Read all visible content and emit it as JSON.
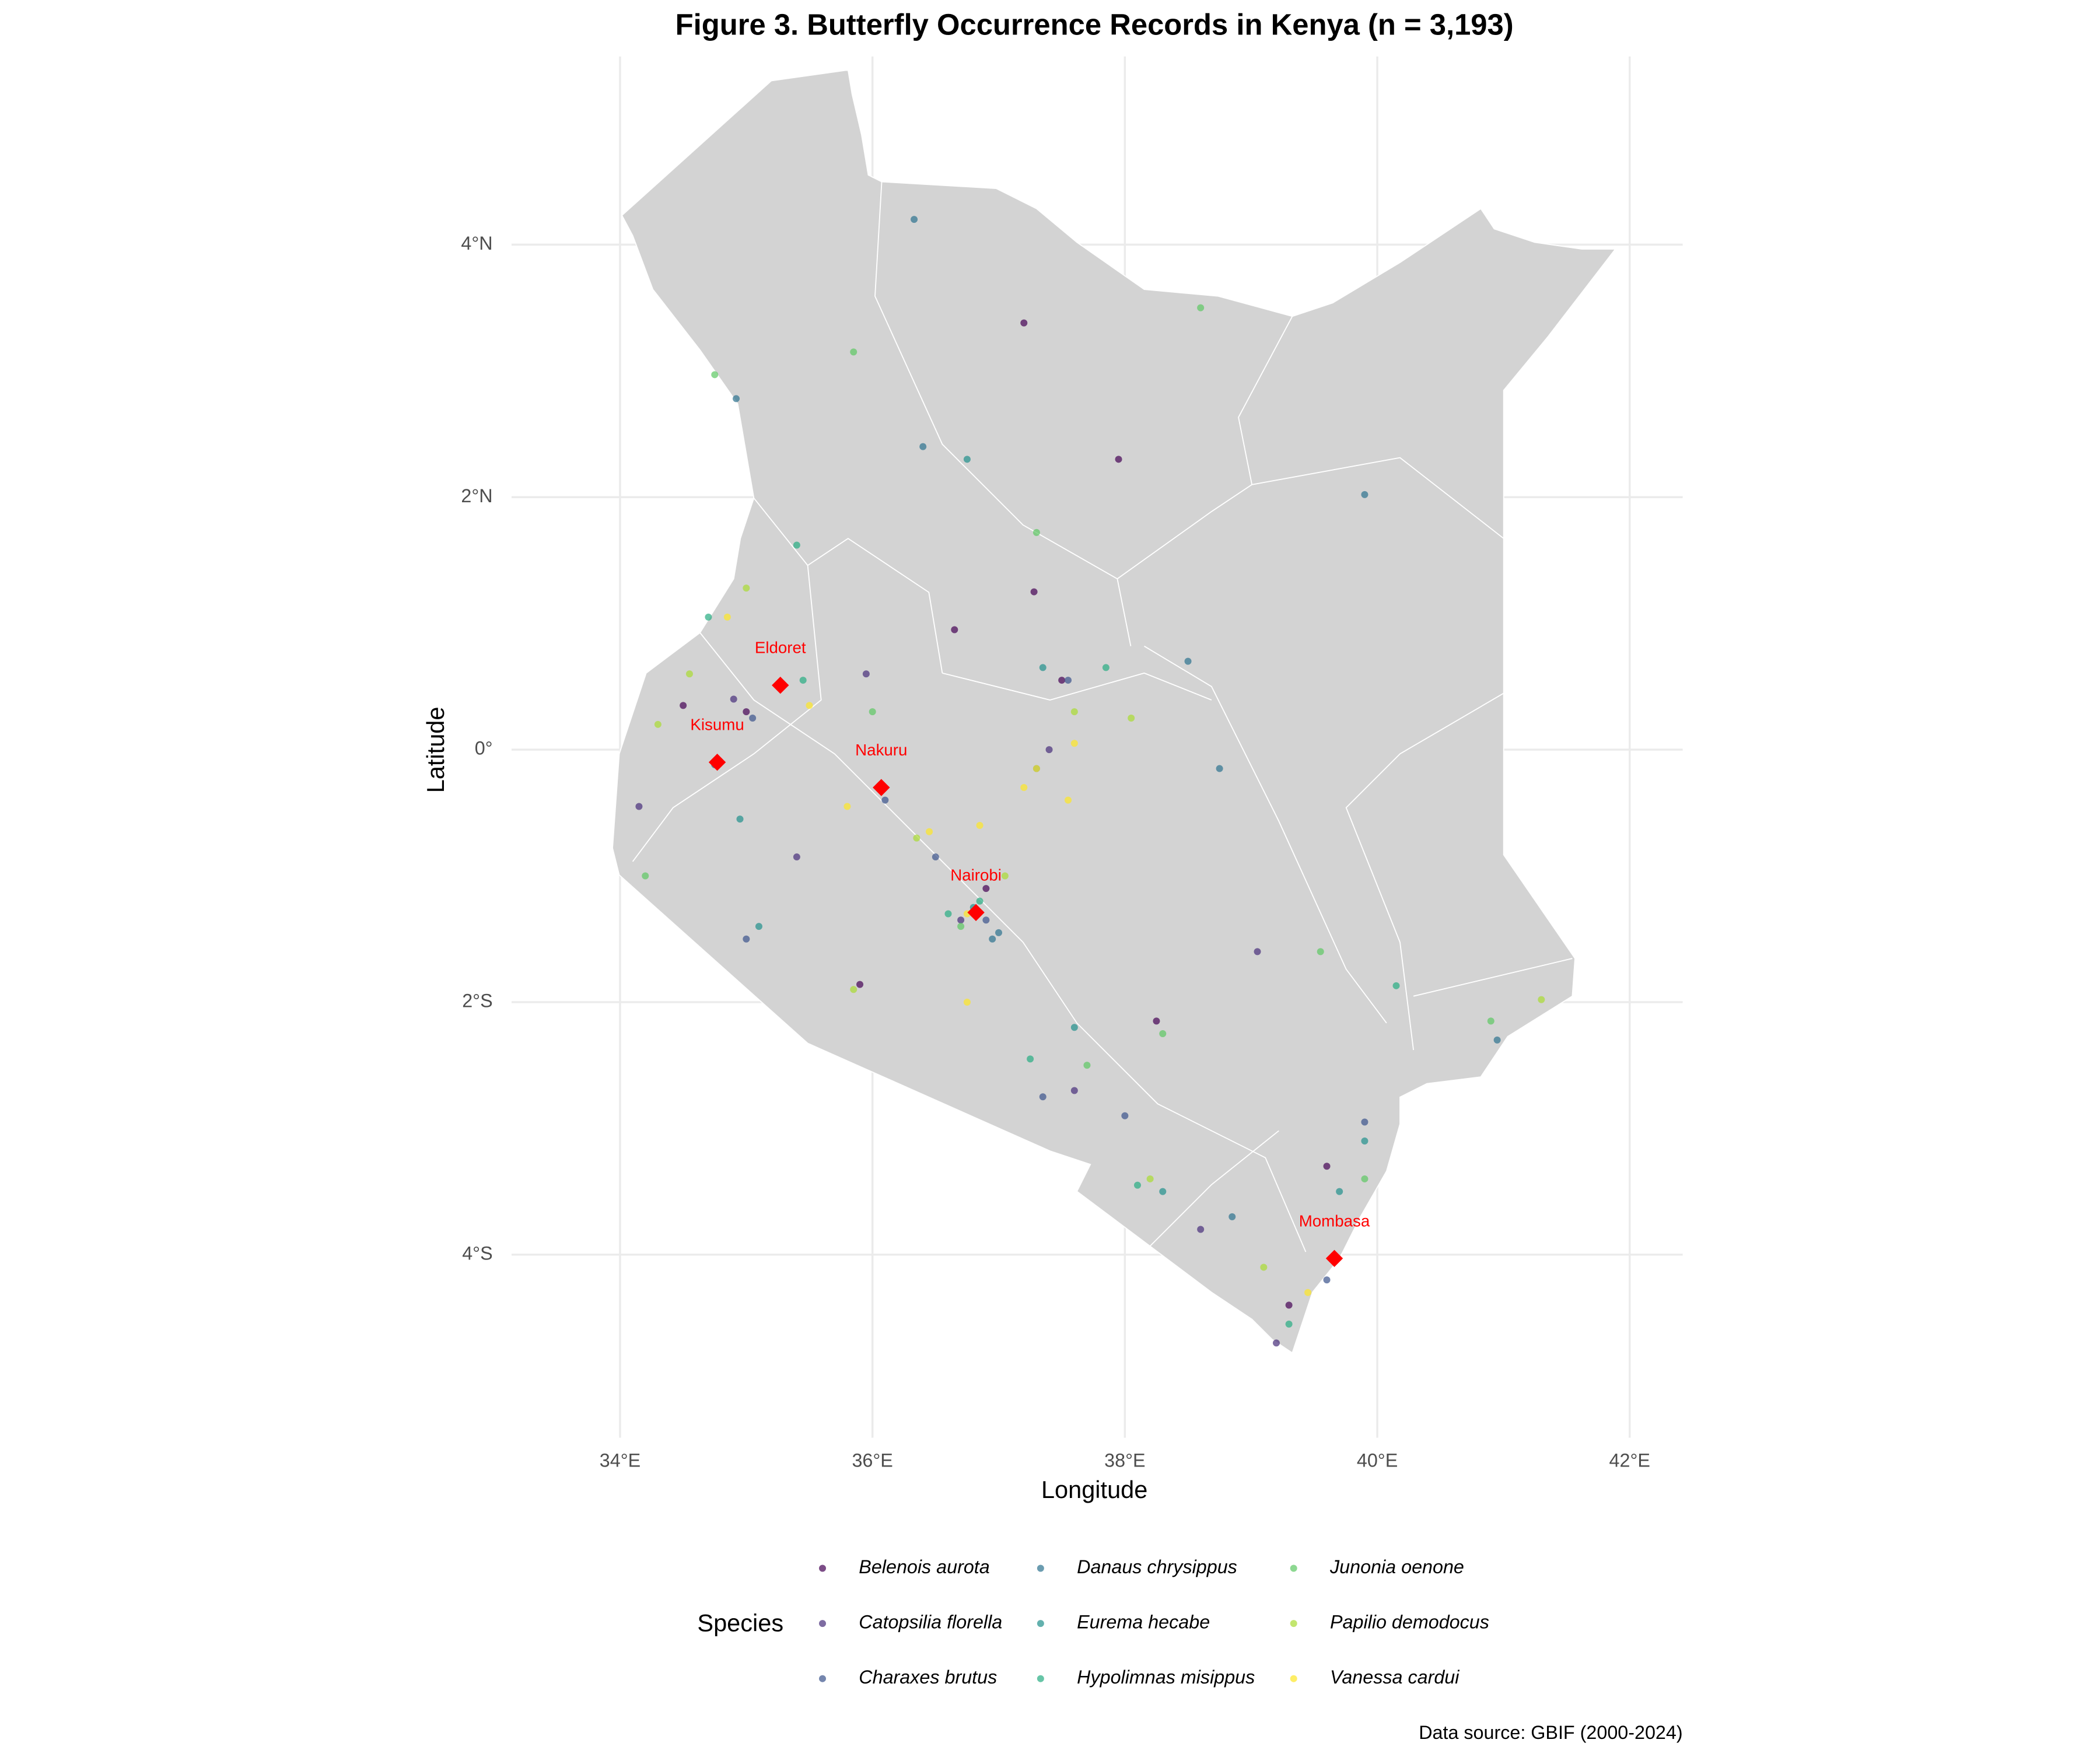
{
  "chart_data": {
    "type": "map",
    "title": "Figure 3. Butterfly Occurrence Records in Kenya (n = 3,193)",
    "x_label": "Longitude",
    "y_label": "Latitude",
    "caption": "Data source: GBIF (2000-2024)",
    "legend_title": "Species",
    "legend_position": "bottom",
    "grid": true,
    "xlim": [
      33.14,
      42.42
    ],
    "ylim": [
      -5.45,
      5.49
    ],
    "xticks": [
      {
        "value": 34,
        "label": "34°E"
      },
      {
        "value": 36,
        "label": "36°E"
      },
      {
        "value": 38,
        "label": "38°E"
      },
      {
        "value": 40,
        "label": "40°E"
      },
      {
        "value": 42,
        "label": "42°E"
      }
    ],
    "yticks": [
      {
        "value": -4,
        "label": "4°S"
      },
      {
        "value": -2,
        "label": "2°S"
      },
      {
        "value": 0,
        "label": "0°"
      },
      {
        "value": 2,
        "label": "2°N"
      },
      {
        "value": 4,
        "label": "4°N"
      }
    ],
    "cities": {
      "color": "#ff0000",
      "names": [
        "Eldoret",
        "Kisumu",
        "Nakuru",
        "Nairobi",
        "Mombasa"
      ],
      "x": [
        35.27,
        34.77,
        36.07,
        36.82,
        39.66
      ],
      "y": [
        0.51,
        -0.1,
        -0.3,
        -1.29,
        -4.03
      ]
    },
    "series": [
      {
        "name": "Belenois aurota",
        "color": "#440154",
        "x": [
          36.82,
          35.0,
          37.2,
          37.95,
          36.65,
          37.28,
          39.3,
          37.5,
          35.9,
          38.25,
          34.5,
          36.9,
          39.6
        ],
        "y": [
          -1.3,
          0.3,
          3.38,
          2.3,
          0.95,
          1.25,
          -4.4,
          0.55,
          -1.86,
          -2.15,
          0.35,
          -1.1,
          -3.3
        ]
      },
      {
        "name": "Catopsilia florella",
        "color": "#472d7b",
        "x": [
          34.15,
          35.95,
          39.05,
          34.9,
          36.7,
          37.4,
          38.6,
          39.2,
          35.4,
          37.6
        ],
        "y": [
          -0.45,
          0.6,
          -1.6,
          0.4,
          -1.35,
          0.0,
          -3.8,
          -4.7,
          -0.85,
          -2.7
        ]
      },
      {
        "name": "Charaxes brutus",
        "color": "#3b528b",
        "x": [
          36.9,
          36.1,
          35.0,
          39.9,
          39.6,
          37.55,
          38.0,
          36.5,
          35.05,
          37.35
        ],
        "y": [
          -1.35,
          -0.4,
          -1.5,
          -2.95,
          -4.2,
          0.55,
          -2.9,
          -0.85,
          0.25,
          -2.75
        ]
      },
      {
        "name": "Danaus chrysippus",
        "color": "#2c728e",
        "x": [
          36.33,
          34.92,
          39.9,
          38.5,
          37.0,
          36.95,
          40.95,
          38.85,
          34.75,
          37.3,
          36.4,
          38.75
        ],
        "y": [
          4.2,
          2.78,
          2.02,
          0.7,
          -1.45,
          -1.5,
          -2.3,
          -3.7,
          -0.12,
          -0.15,
          2.4,
          -0.15
        ]
      },
      {
        "name": "Eurema hecabe",
        "color": "#21908c",
        "x": [
          36.75,
          37.35,
          35.1,
          37.6,
          39.7,
          36.8,
          39.9,
          38.3,
          34.95
        ],
        "y": [
          2.3,
          0.65,
          -1.4,
          -2.2,
          -3.5,
          -1.25,
          -3.1,
          -3.5,
          -0.55
        ]
      },
      {
        "name": "Hypolimnas misippus",
        "color": "#27ad81",
        "x": [
          35.45,
          37.85,
          36.85,
          37.25,
          39.3,
          40.15,
          35.4,
          34.7,
          36.6,
          38.1
        ],
        "y": [
          0.55,
          0.65,
          -1.2,
          -2.45,
          -4.55,
          -1.87,
          1.62,
          1.05,
          -1.3,
          -3.45
        ]
      },
      {
        "name": "Junonia oenone",
        "color": "#5dc863",
        "x": [
          34.75,
          35.85,
          38.6,
          37.3,
          38.3,
          39.55,
          40.9,
          34.2,
          36.0,
          37.7,
          39.9,
          36.7
        ],
        "y": [
          2.97,
          3.15,
          3.5,
          1.72,
          -2.25,
          -1.6,
          -2.15,
          -1.0,
          0.3,
          -2.5,
          -3.4,
          -1.4
        ]
      },
      {
        "name": "Papilio demodocus",
        "color": "#aadc32",
        "x": [
          35.0,
          34.55,
          36.35,
          37.05,
          41.3,
          39.1,
          35.85,
          38.05,
          34.3,
          37.6,
          36.8,
          38.2
        ],
        "y": [
          1.28,
          0.6,
          -0.7,
          -1.0,
          -1.98,
          -4.1,
          -1.9,
          0.25,
          0.2,
          0.3,
          -1.3,
          -3.4
        ]
      },
      {
        "name": "Vanessa cardui",
        "color": "#fde725",
        "x": [
          34.85,
          35.5,
          36.45,
          36.85,
          37.3,
          37.55,
          36.75,
          37.6,
          36.75,
          35.8,
          39.45,
          37.2
        ],
        "y": [
          1.05,
          0.35,
          -0.65,
          -0.6,
          -0.15,
          -0.4,
          -1.3,
          0.05,
          -2.0,
          -0.45,
          -4.3,
          -0.3
        ]
      }
    ]
  }
}
